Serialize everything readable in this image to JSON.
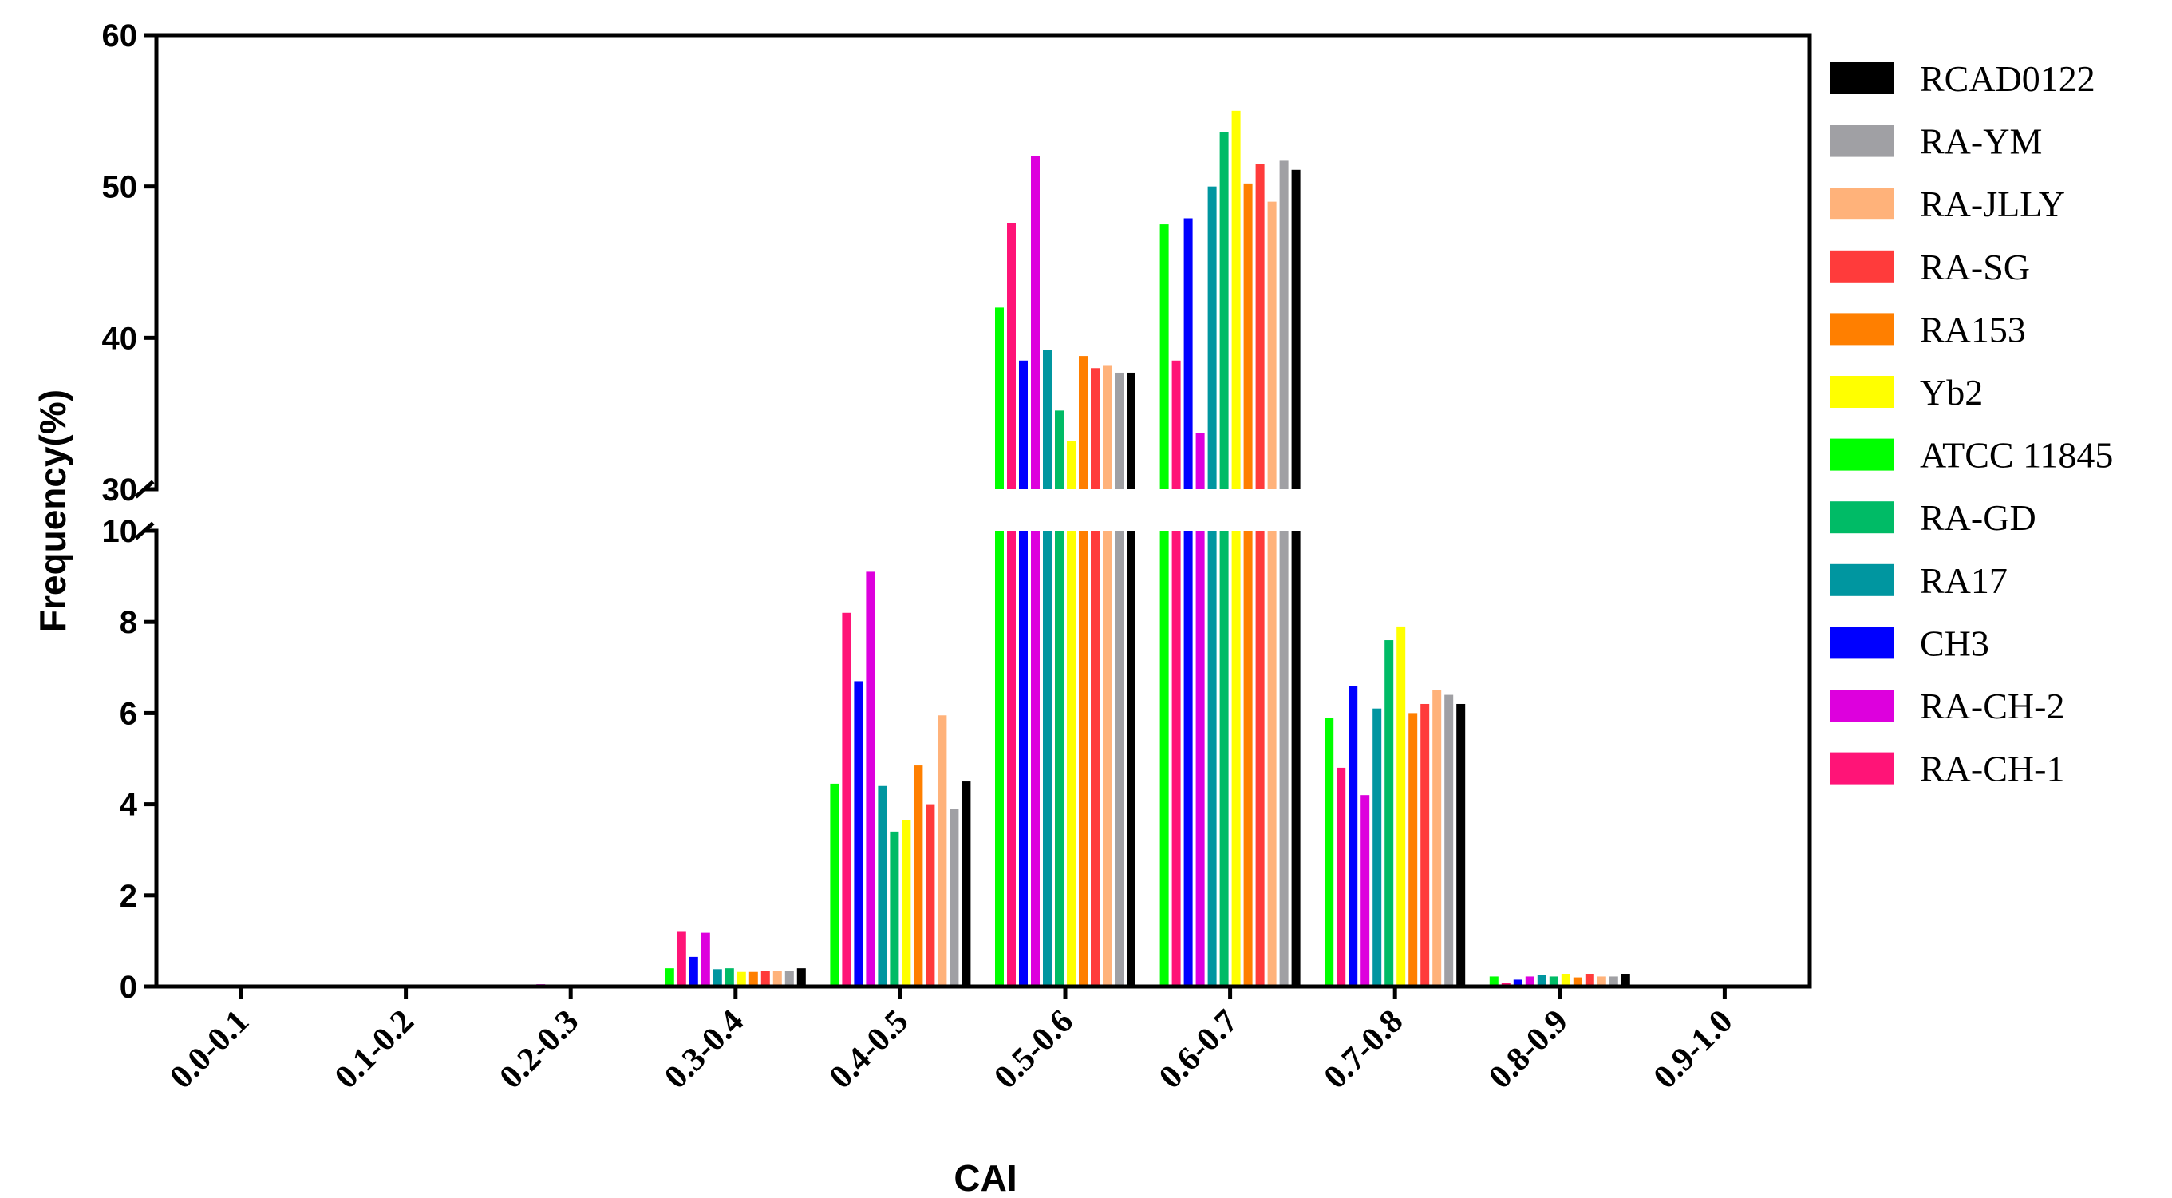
{
  "chart_data": {
    "type": "bar",
    "xlabel": "CAI",
    "ylabel": "Frequency(%)",
    "categories": [
      "0.0-0.1",
      "0.1-0.2",
      "0.2-0.3",
      "0.3-0.4",
      "0.4-0.5",
      "0.5-0.6",
      "0.6-0.7",
      "0.7-0.8",
      "0.8-0.9",
      "0.9-1.0"
    ],
    "y_axis_break": {
      "lower_range": [
        0,
        10
      ],
      "upper_range": [
        30,
        60
      ]
    },
    "y_ticks_lower": [
      0,
      2,
      4,
      6,
      8,
      10
    ],
    "y_ticks_upper": [
      30,
      40,
      50,
      60
    ],
    "legend_position": "right",
    "series": [
      {
        "name": "ATCC 11845",
        "color": "#00ff00",
        "values": [
          0,
          0,
          0,
          0.4,
          4.45,
          42.0,
          47.5,
          5.9,
          0.22,
          0
        ]
      },
      {
        "name": "RA-CH-1",
        "color": "#ff1477",
        "values": [
          0,
          0,
          0,
          1.2,
          8.2,
          47.6,
          38.5,
          4.8,
          0.08,
          0
        ]
      },
      {
        "name": "CH3",
        "color": "#0000ff",
        "values": [
          0,
          0,
          0,
          0.65,
          6.7,
          38.5,
          47.9,
          6.6,
          0.15,
          0
        ]
      },
      {
        "name": "RA-CH-2",
        "color": "#dd00dd",
        "values": [
          0,
          0,
          0.05,
          1.18,
          9.1,
          52.0,
          33.7,
          4.2,
          0.22,
          0
        ]
      },
      {
        "name": "RA17",
        "color": "#0096a0",
        "values": [
          0,
          0,
          0,
          0.38,
          4.4,
          39.2,
          50.0,
          6.1,
          0.25,
          0
        ]
      },
      {
        "name": "RA-GD",
        "color": "#00bb66",
        "values": [
          0,
          0,
          0,
          0.4,
          3.4,
          35.2,
          53.6,
          7.6,
          0.22,
          0
        ]
      },
      {
        "name": "Yb2",
        "color": "#ffff00",
        "values": [
          0,
          0,
          0,
          0.32,
          3.65,
          33.2,
          55.0,
          7.9,
          0.28,
          0
        ]
      },
      {
        "name": "RA153",
        "color": "#ff7f00",
        "values": [
          0,
          0,
          0,
          0.32,
          4.85,
          38.8,
          50.2,
          6.0,
          0.2,
          0
        ]
      },
      {
        "name": "RA-SG",
        "color": "#ff3b3b",
        "values": [
          0,
          0,
          0,
          0.35,
          4.0,
          38.0,
          51.5,
          6.2,
          0.28,
          0
        ]
      },
      {
        "name": "RA-JLLY",
        "color": "#ffb27a",
        "values": [
          0,
          0,
          0,
          0.35,
          5.95,
          38.2,
          49.0,
          6.5,
          0.22,
          0
        ]
      },
      {
        "name": "RA-YM",
        "color": "#a0a0a4",
        "values": [
          0,
          0,
          0,
          0.35,
          3.9,
          37.7,
          51.7,
          6.4,
          0.22,
          0
        ]
      },
      {
        "name": "RCAD0122",
        "color": "#000000",
        "values": [
          0,
          0,
          0,
          0.4,
          4.5,
          37.7,
          51.1,
          6.2,
          0.28,
          0
        ]
      }
    ],
    "legend_order": [
      "RCAD0122",
      "RA-YM",
      "RA-JLLY",
      "RA-SG",
      "RA153",
      "Yb2",
      "ATCC 11845",
      "RA-GD",
      "RA17",
      "CH3",
      "RA-CH-2",
      "RA-CH-1"
    ]
  }
}
